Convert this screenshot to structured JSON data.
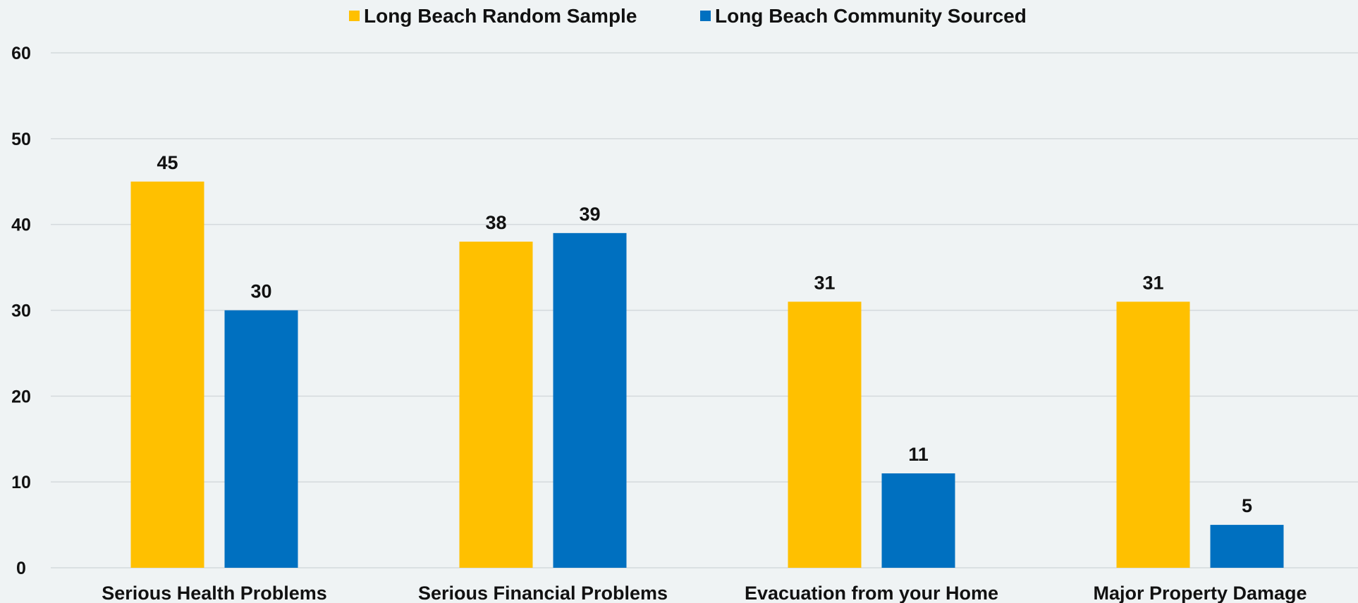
{
  "chart_data": {
    "type": "bar",
    "title": "",
    "xlabel": "",
    "ylabel": "",
    "categories": [
      "Serious Health Problems",
      "Serious Financial Problems",
      "Evacuation from your Home",
      "Major Property Damage"
    ],
    "series": [
      {
        "name": "Long Beach Random Sample",
        "values": [
          45,
          38,
          31,
          31
        ],
        "color": "#ffc000"
      },
      {
        "name": "Long Beach Community Sourced",
        "values": [
          30,
          39,
          11,
          5
        ],
        "color": "#0070c0"
      }
    ],
    "ylim": [
      0,
      60
    ],
    "yticks": [
      0,
      10,
      20,
      30,
      40,
      50,
      60
    ],
    "grid": true,
    "legend": "top-center",
    "data_labels": true,
    "colors": {
      "background": "#eff3f4",
      "grid": "#d4d9dc",
      "text": "#111111"
    }
  }
}
